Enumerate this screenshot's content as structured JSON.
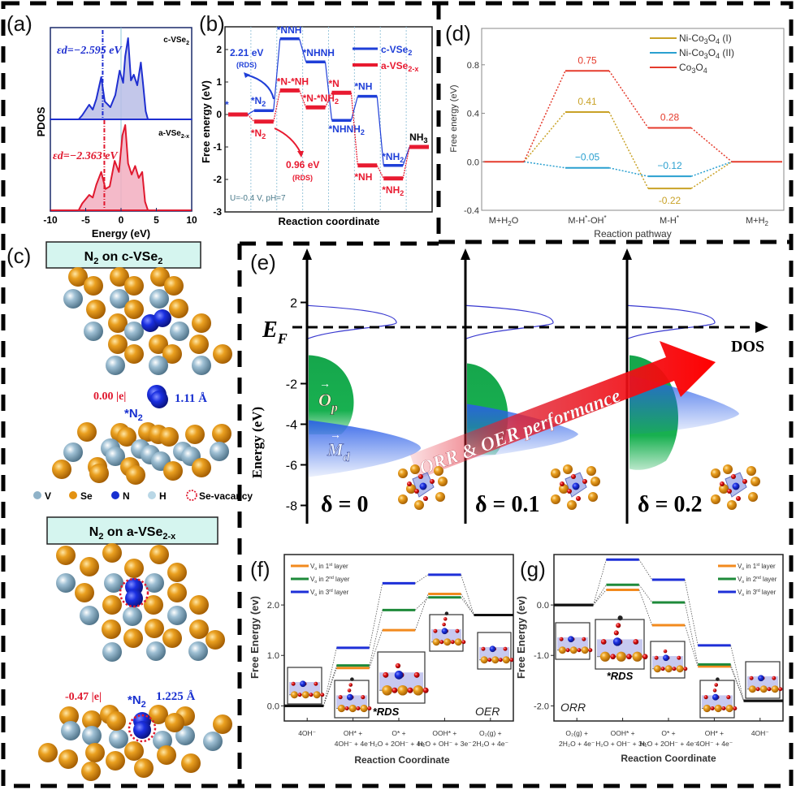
{
  "figure": {
    "panel_labels": [
      "(a)",
      "(b)",
      "(c)",
      "(d)",
      "(e)",
      "(f)",
      "(g)"
    ]
  },
  "chart_data": [
    {
      "id": "a",
      "type": "area",
      "xlabel": "Energy (eV)",
      "ylabel": "PDOS",
      "xlim": [
        -10,
        10
      ],
      "xticks": [
        "-10",
        "-5",
        "0",
        "5",
        "10"
      ],
      "series": [
        {
          "name": "c-VSe2",
          "label_main": "c-VSe",
          "label_sub": "2",
          "color": "#1f2fd0",
          "fill": "#b9bde6",
          "d_band_center": -2.595,
          "annotation": "εd=−2.595 eV",
          "x": [
            -10,
            -6,
            -5.5,
            -4.5,
            -4,
            -3.5,
            -2.8,
            -2.3,
            -1.5,
            -0.8,
            -0.2,
            0.3,
            0.6,
            1.0,
            1.4,
            1.8,
            2.3,
            2.8,
            3.1,
            3.5,
            3.8,
            10
          ],
          "y": [
            0,
            0,
            0.05,
            0.18,
            0.12,
            0.25,
            0.52,
            0.22,
            0.15,
            0.3,
            0.6,
            0.45,
            0.78,
            1.0,
            0.48,
            0.55,
            0.42,
            0.7,
            0.45,
            0.1,
            0,
            0
          ]
        },
        {
          "name": "a-VSe2-x",
          "label_main": "a-VSe",
          "label_sub": "2-x",
          "color": "#e0192f",
          "fill": "#f2aec0",
          "d_band_center": -2.363,
          "annotation": "εd=−2.363 eV",
          "x": [
            -10,
            -6,
            -5.5,
            -4.5,
            -4,
            -3.5,
            -2.8,
            -2.2,
            -1.6,
            -0.9,
            -0.3,
            0.2,
            0.6,
            1.0,
            1.5,
            2.0,
            2.5,
            3.0,
            3.4,
            3.8,
            10
          ],
          "y": [
            0,
            0,
            0.08,
            0.18,
            0.15,
            0.3,
            0.45,
            0.25,
            0.28,
            0.58,
            0.45,
            0.88,
            1.0,
            0.55,
            0.42,
            0.52,
            0.38,
            0.45,
            0.1,
            0,
            0
          ]
        }
      ]
    },
    {
      "id": "b",
      "type": "line",
      "title": "",
      "xlabel": "Reaction coordinate",
      "ylabel": "Free energy (eV)",
      "ylim": [
        -3,
        2.7
      ],
      "yticks": [
        "-3",
        "-2",
        "-1",
        "0",
        "1",
        "2"
      ],
      "condition": "U=-0.4 V, pH=7",
      "series": [
        {
          "name": "c-VSe2",
          "color": "#1f3fd8",
          "steps": [
            0,
            0.12,
            2.33,
            1.62,
            -0.18,
            0.56,
            -1.57,
            -1.0
          ],
          "labels": [
            "*",
            "*N2",
            "*NNH",
            "*NHNH",
            "*NHNH2",
            "*NH",
            "*NH2",
            "NH3"
          ]
        },
        {
          "name": "a-VSe2-x",
          "color": "#e81a30",
          "steps": [
            0,
            -0.22,
            0.74,
            0.22,
            0.67,
            -1.57,
            -1.97,
            -1.0
          ],
          "labels": [
            "*",
            "*N2",
            "*N-*NH",
            "*N-*NH2",
            "*N",
            "*NH",
            "*NH2",
            "NH3"
          ]
        }
      ],
      "annotations": [
        {
          "text": "2.21 eV",
          "sub": "(RDS)",
          "color": "#1f3fd8"
        },
        {
          "text": "0.96 eV",
          "sub": "(RDS)",
          "color": "#e81a30"
        }
      ],
      "legend": [
        "c-VSe2",
        "a-VSe2-x"
      ],
      "legend_position": "top-right"
    },
    {
      "id": "d",
      "type": "line",
      "xlabel": "Reaction pathway",
      "ylabel": "Free energy (eV)",
      "ylim": [
        -0.4,
        1.1
      ],
      "yticks": [
        "-0.4",
        "0.0",
        "0.4",
        "0.8"
      ],
      "categories": [
        "M+H2O",
        "M-H*-OH*",
        "M-H*",
        "M+H2"
      ],
      "series": [
        {
          "name": "Ni-Co3O4 (I)",
          "color": "#c9a227",
          "values": [
            0,
            0.41,
            -0.22,
            0
          ],
          "labels": [
            "",
            "0.41",
            "-0.22",
            ""
          ]
        },
        {
          "name": "Ni-Co3O4 (II)",
          "color": "#2aa0d0",
          "values": [
            0,
            -0.05,
            -0.12,
            0
          ],
          "labels": [
            "",
            "−0.05",
            "−0.12",
            ""
          ]
        },
        {
          "name": "Co3O4",
          "color": "#e53b2c",
          "values": [
            0,
            0.75,
            0.28,
            0
          ],
          "labels": [
            "",
            "0.75",
            "0.28",
            ""
          ]
        }
      ],
      "legend_position": "top-right"
    },
    {
      "id": "e",
      "type": "area",
      "ylabel": "Energy (eV)",
      "xlabel": "DOS",
      "ylim": [
        -8.5,
        3.3
      ],
      "yticks": [
        "-8",
        "-6",
        "-4",
        "-2",
        "2"
      ],
      "fermi_label": "E",
      "fermi_sub": "F",
      "states": [
        {
          "label": "δ = 0",
          "delta": 0
        },
        {
          "label": "δ = 0.1",
          "delta": 0.1
        },
        {
          "label": "δ = 0.2",
          "delta": 0.2
        }
      ],
      "band_labels": {
        "o_p": "O",
        "o_p_sub": "p",
        "m_d": "M",
        "m_d_sub": "d"
      },
      "arrow_text": "ORR & OER performance"
    },
    {
      "id": "f",
      "type": "line",
      "xlabel": "Reaction Coordinate",
      "ylabel": "Free Energy (ev)",
      "ylim": [
        -0.3,
        3.0
      ],
      "yticks": [
        "0.0",
        "1.0",
        "2.0"
      ],
      "categories": [
        "4OH⁻",
        "OH* + 4OH⁻ + 4e⁻",
        "O* + H₂O + 2OH⁻ + 4e⁻",
        "OOH* + H₂O + OH⁻ + 3e⁻",
        "O₂(g) + 2H₂O + 4e⁻"
      ],
      "series": [
        {
          "name": "Vo in 1st layer",
          "color": "#f28a1e",
          "values": [
            0,
            0.75,
            1.5,
            2.22,
            1.8
          ]
        },
        {
          "name": "Vo in 2nd layer",
          "color": "#1e8a3a",
          "values": [
            0,
            0.8,
            1.9,
            2.15,
            1.8
          ]
        },
        {
          "name": "Vo in 3rd layer",
          "color": "#1d2fd8",
          "values": [
            0,
            1.15,
            2.43,
            2.6,
            1.8
          ]
        }
      ],
      "rds_label": "*RDS",
      "reaction_label": "OER",
      "legend_position": "top-left"
    },
    {
      "id": "g",
      "type": "line",
      "xlabel": "Reaction Coordinate",
      "ylabel": "Free Energy (ev)",
      "ylim": [
        -2.3,
        1.0
      ],
      "yticks": [
        "-2.0",
        "-1.0",
        "0.0"
      ],
      "categories": [
        "O₂(g) + 2H₂O + 4e⁻",
        "OOH* + H₂O + OH⁻ + 3e⁻",
        "O* + H₂O + 2OH⁻ + 4e⁻",
        "OH* + 4OH⁻ + 4e⁻",
        "4OH⁻"
      ],
      "series": [
        {
          "name": "Vo in 1st layer",
          "color": "#f28a1e",
          "values": [
            0,
            0.3,
            -0.4,
            -1.22,
            -1.9
          ]
        },
        {
          "name": "Vo in 2nd layer",
          "color": "#1e8a3a",
          "values": [
            0,
            0.4,
            0.05,
            -1.18,
            -1.9
          ]
        },
        {
          "name": "Vo in 3rd layer",
          "color": "#1d2fd8",
          "values": [
            0,
            0.9,
            0.5,
            -0.8,
            -1.9
          ]
        }
      ],
      "rds_label": "*RDS",
      "reaction_label": "ORR",
      "legend_position": "top-right"
    }
  ],
  "panel_c": {
    "title_top": "N",
    "title_top_rest": " on c-VSe",
    "title_top_sub": "2",
    "title_bottom": "N",
    "title_bottom_rest": " on a-VSe",
    "title_bottom_sub": "2-x",
    "charge_top": "0.00 |e|",
    "bond_top": "1.11 Å",
    "charge_bottom": "-0.47 |e|",
    "bond_bottom": "1.225 Å",
    "adsorbate": "*N",
    "legend": [
      {
        "label": "V",
        "color": "#8fb2c8"
      },
      {
        "label": "Se",
        "color": "#e39212"
      },
      {
        "label": "N",
        "color": "#1830d0"
      },
      {
        "label": "H",
        "color": "#b9d7e6"
      },
      {
        "label": "Se-vacancy",
        "color": "#e0192f"
      }
    ]
  },
  "colors": {
    "se": "#e39212",
    "v": "#8fb2c8",
    "n": "#1830d0",
    "o": "#e0192f",
    "box_fill": "#d5f5ef"
  }
}
